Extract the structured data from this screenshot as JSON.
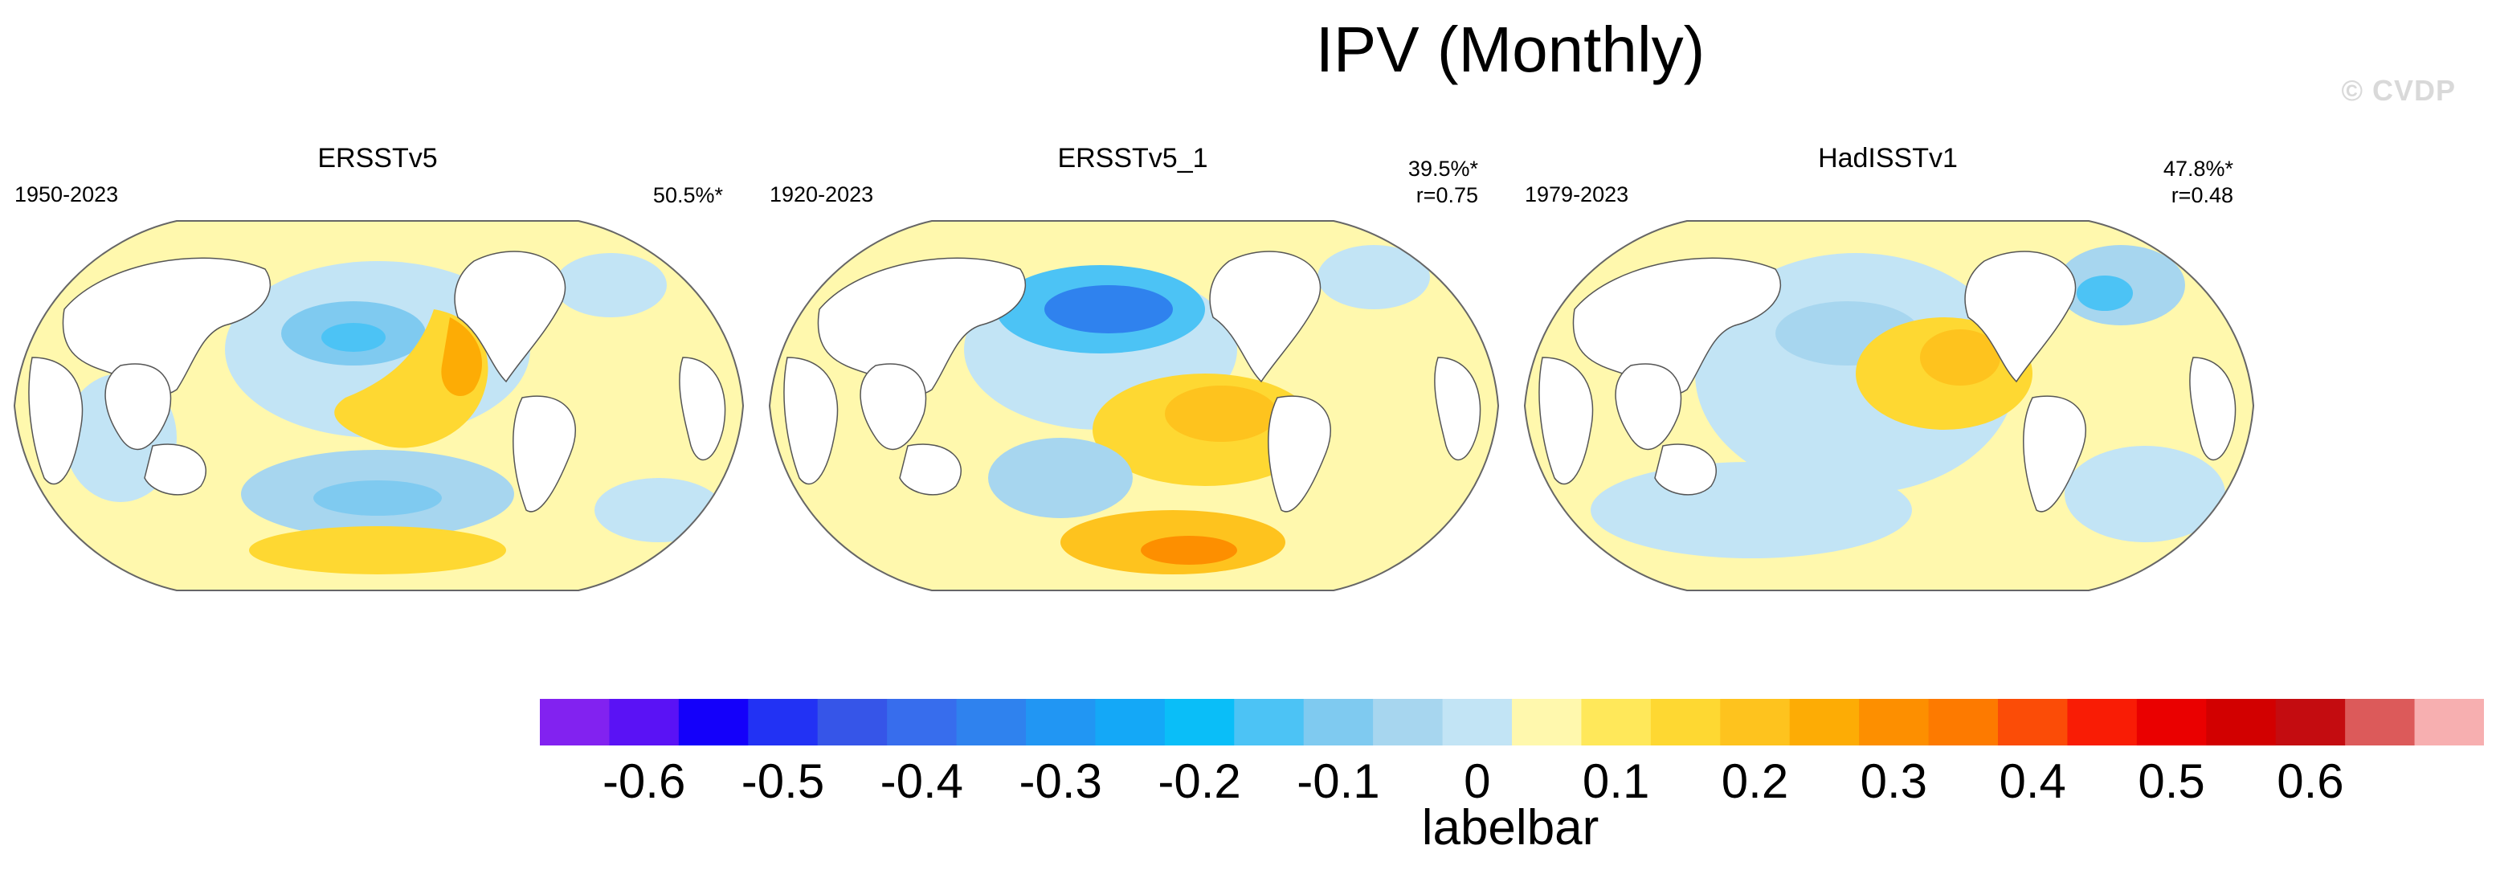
{
  "title": "IPV (Monthly)",
  "watermark": "© CVDP",
  "panels": [
    {
      "name": "ERSSTv5",
      "years": "1950-2023",
      "pct": "50.5%*",
      "r": ""
    },
    {
      "name": "ERSSTv5_1",
      "years": "1920-2023",
      "pct": "39.5%*",
      "r": "r=0.75"
    },
    {
      "name": "HadISSTv1",
      "years": "1979-2023",
      "pct": "47.8%*",
      "r": "r=0.48"
    }
  ],
  "colorbar": {
    "title": "labelbar",
    "colors": [
      "#8222f0",
      "#5a12f5",
      "#1400fa",
      "#2232f4",
      "#3655e8",
      "#376ded",
      "#2f82ee",
      "#2196f3",
      "#14a8f7",
      "#0abef8",
      "#4cc3f5",
      "#7fcaf0",
      "#a7d6ef",
      "#c2e4f5",
      "#fff8ad",
      "#ffe85a",
      "#fed832",
      "#fec31e",
      "#fdac05",
      "#fd8f00",
      "#fd7a00",
      "#fb4c07",
      "#f91c05",
      "#ea0000",
      "#d20000",
      "#c40c10",
      "#dc5a5a",
      "#f7afb0"
    ],
    "tick_labels": [
      "-0.6",
      "-0.5",
      "-0.4",
      "-0.3",
      "-0.2",
      "-0.1",
      "0",
      "0.1",
      "0.2",
      "0.3",
      "0.4",
      "0.5",
      "0.6"
    ]
  }
}
